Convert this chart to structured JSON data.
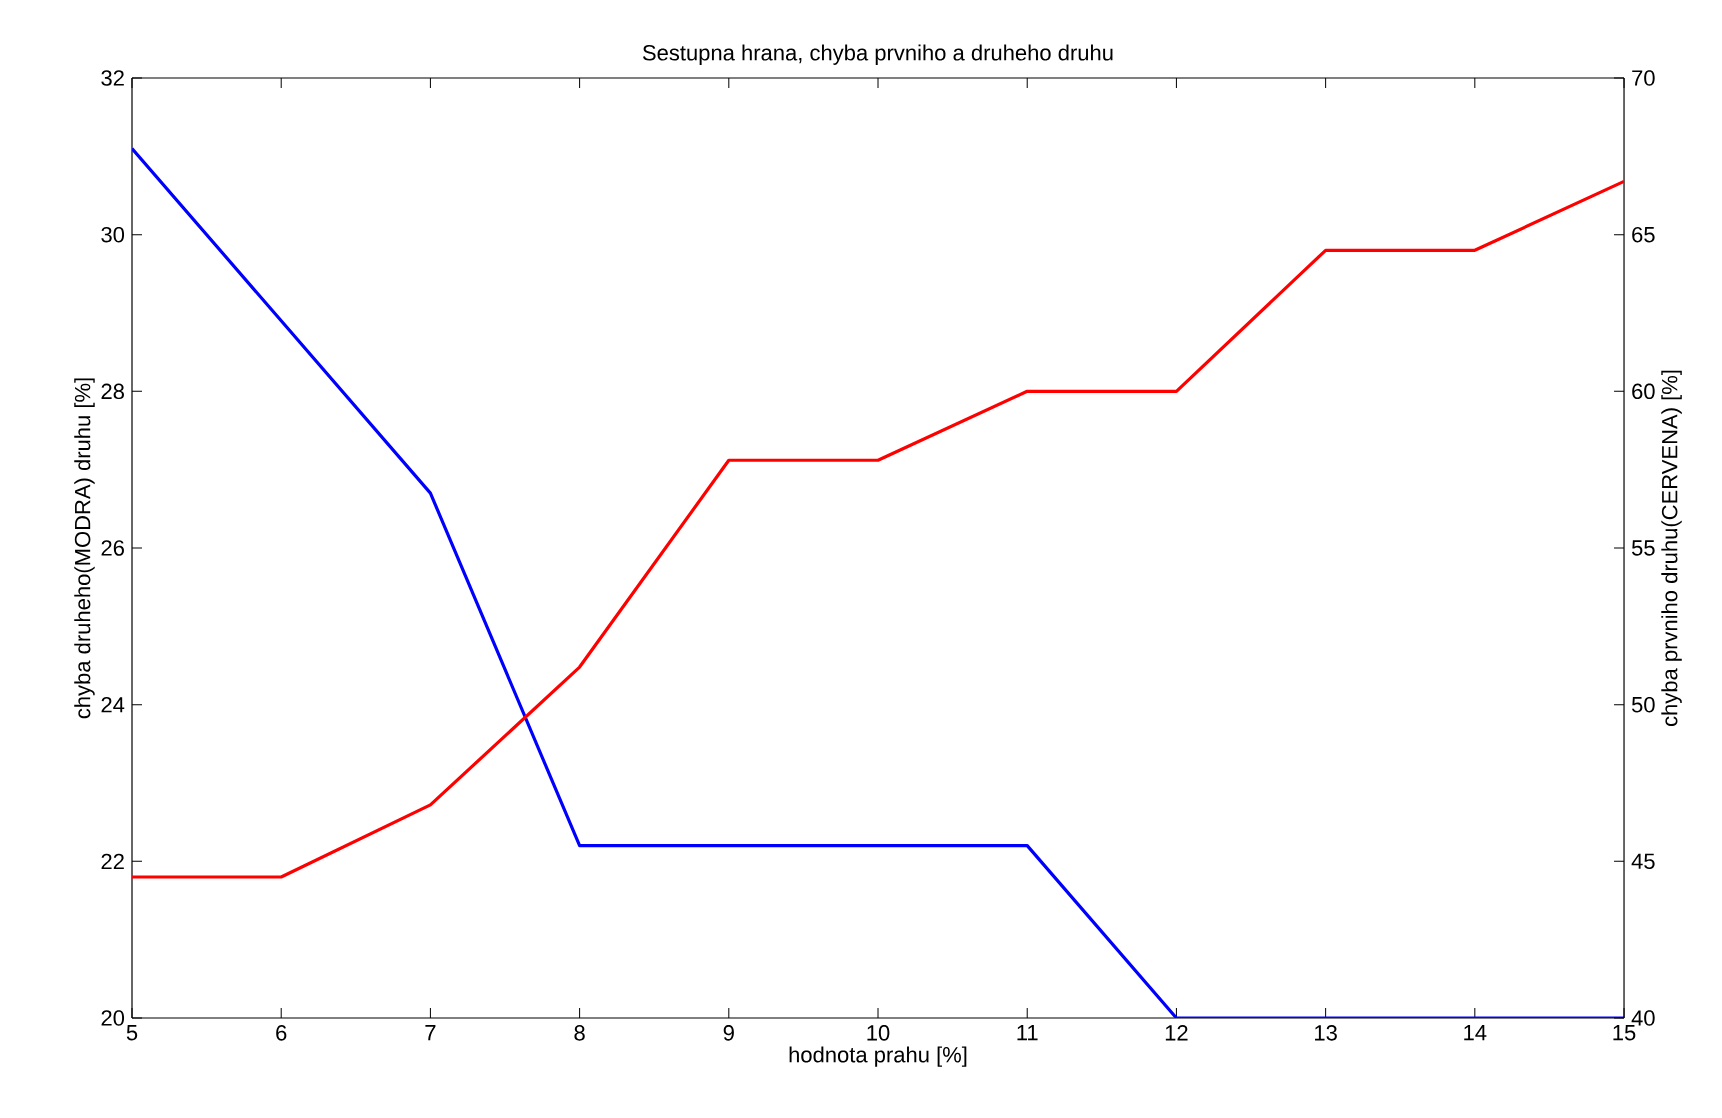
{
  "chart_data": {
    "type": "line",
    "title": "Sestupna hrana, chyba prvniho a druheho druhu",
    "xlabel": "hodnota prahu [%]",
    "ylabel": "chyba druheho(MODRA) druhu [%]",
    "y2label": "chyba prvniho druhu(CERVENA) [%]",
    "x": [
      5,
      6,
      7,
      8,
      9,
      10,
      11,
      12,
      13,
      14,
      15
    ],
    "series": [
      {
        "color": "#0000ff",
        "values": [
          31.1,
          28.9,
          26.7,
          22.2,
          22.2,
          22.2,
          22.2,
          20,
          20,
          20,
          20
        ]
      },
      {
        "color": "#ff0000",
        "axis": "y2",
        "values": [
          44.5,
          44.5,
          46.8,
          51.2,
          57.8,
          57.8,
          60,
          60,
          64.5,
          64.5,
          66.7
        ]
      }
    ],
    "xlim": [
      5,
      15
    ],
    "xticks": [
      5,
      6,
      7,
      8,
      9,
      10,
      11,
      12,
      13,
      14,
      15
    ],
    "ylim": [
      20,
      32
    ],
    "yticks": [
      20,
      22,
      24,
      26,
      28,
      30,
      32
    ],
    "y2lim": [
      40,
      70
    ],
    "y2ticks": [
      40,
      45,
      50,
      55,
      60,
      65,
      70
    ],
    "grid": false,
    "marker": "none",
    "line_style": "solid"
  }
}
